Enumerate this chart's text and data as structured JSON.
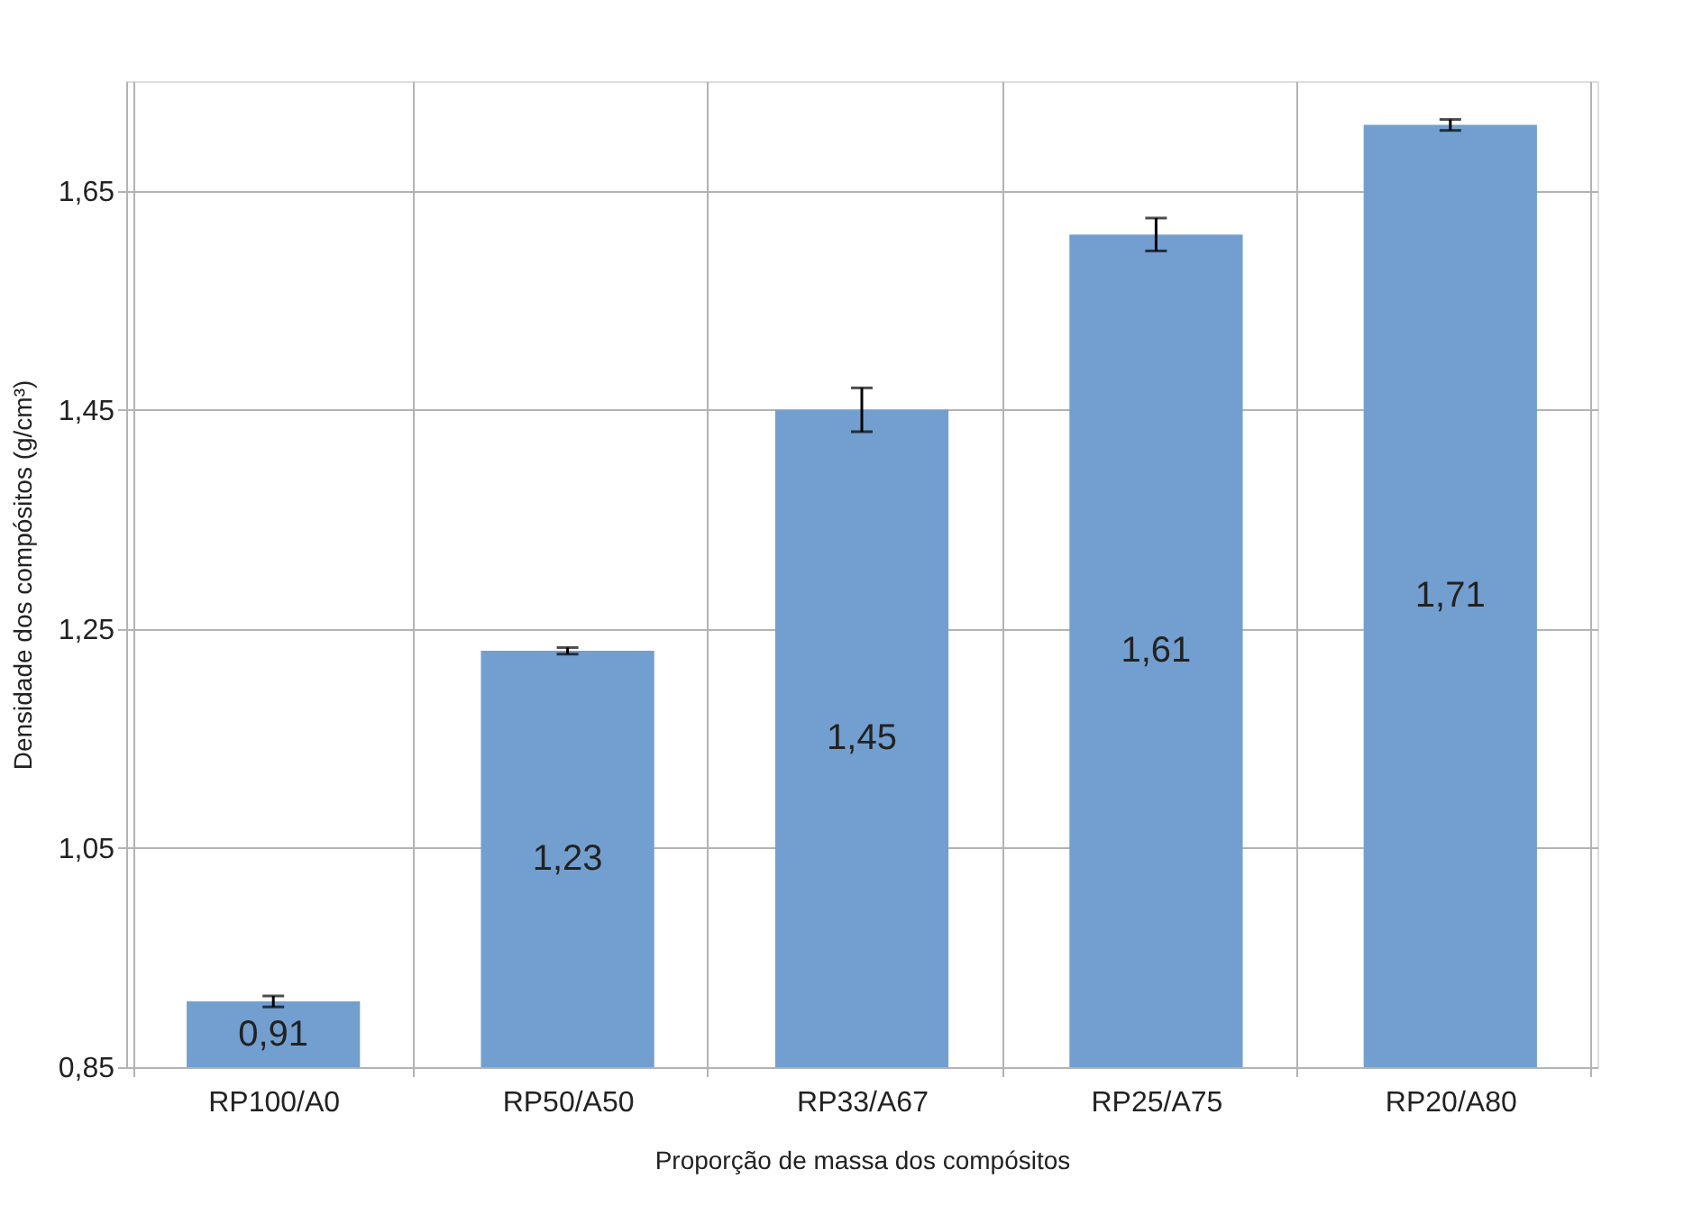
{
  "chart_data": {
    "type": "bar",
    "xlabel": "Proporção de massa dos compósitos",
    "ylabel": "Densidade dos compósitos (g/cm³)",
    "categories": [
      "RP100/A0",
      "RP50/A50",
      "RP33/A67",
      "RP25/A75",
      "RP20/A80"
    ],
    "values": [
      0.91,
      1.23,
      1.45,
      1.61,
      1.71
    ],
    "color": "#729fcf",
    "errors": [
      0.005,
      0.003,
      0.02,
      0.015,
      0.005
    ],
    "ylim": [
      0.85,
      1.75
    ],
    "yticks": [
      {
        "value": 0.85,
        "label": "0,85"
      },
      {
        "value": 1.05,
        "label": "1,05"
      },
      {
        "value": 1.25,
        "label": "1,25"
      },
      {
        "value": 1.45,
        "label": "1,45"
      },
      {
        "value": 1.65,
        "label": "1,65"
      }
    ],
    "value_labels": [
      "0,91",
      "1,23",
      "1,45",
      "1,61",
      "1,71"
    ],
    "grid": true
  }
}
